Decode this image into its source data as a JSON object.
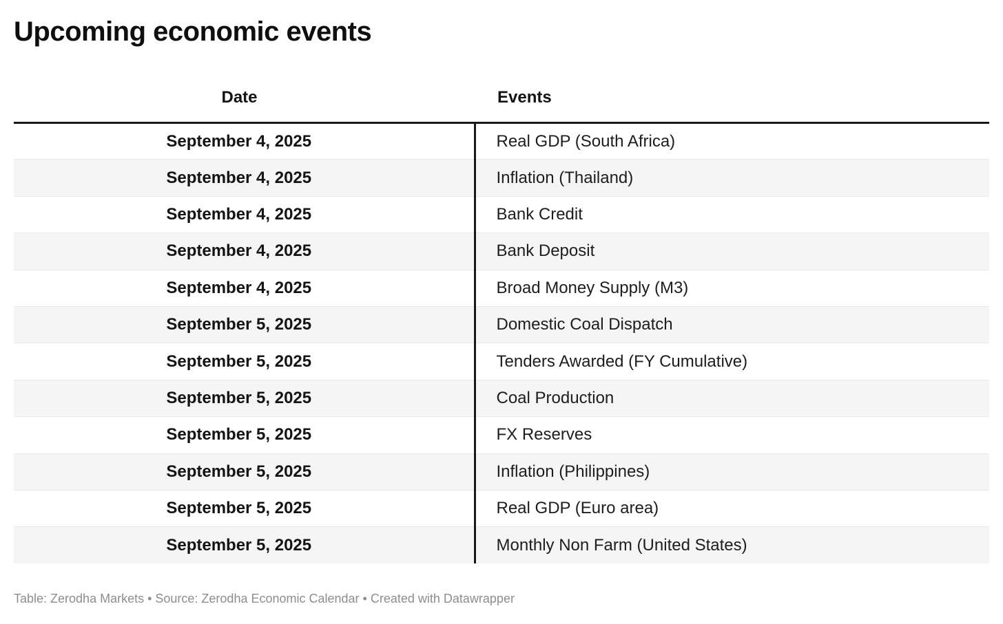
{
  "title": "Upcoming economic events",
  "chart_data": {
    "type": "table",
    "title": "Upcoming economic events",
    "columns": [
      "Date",
      "Events"
    ],
    "rows": [
      {
        "date": "September 4, 2025",
        "event": "Real GDP (South Africa)"
      },
      {
        "date": "September 4, 2025",
        "event": "Inflation (Thailand)"
      },
      {
        "date": "September 4, 2025",
        "event": "Bank Credit"
      },
      {
        "date": "September 4, 2025",
        "event": "Bank Deposit"
      },
      {
        "date": "September 4, 2025",
        "event": "Broad Money Supply (M3)"
      },
      {
        "date": "September 5, 2025",
        "event": "Domestic Coal Dispatch"
      },
      {
        "date": "September 5, 2025",
        "event": "Tenders Awarded (FY Cumulative)"
      },
      {
        "date": "September 5, 2025",
        "event": "Coal Production"
      },
      {
        "date": "September 5, 2025",
        "event": "FX Reserves"
      },
      {
        "date": "September 5, 2025",
        "event": "Inflation (Philippines)"
      },
      {
        "date": "September 5, 2025",
        "event": "Real GDP (Euro area)"
      },
      {
        "date": "September 5, 2025",
        "event": "Monthly Non Farm (United States)"
      }
    ],
    "layout": {
      "zebra_striping": true,
      "date_column_align": "center",
      "events_column_align": "left"
    }
  },
  "footer": {
    "attribution": "Table: Zerodha Markets • Source: Zerodha Economic Calendar • Created with Datawrapper"
  },
  "colors": {
    "text": "#1d1d1d",
    "heading": "#0f0f0f",
    "rule_black": "#181818",
    "stripe": "#f5f5f5",
    "row_border": "#e8e8e8",
    "footer_gray": "#8d8d8d",
    "background": "#ffffff"
  }
}
